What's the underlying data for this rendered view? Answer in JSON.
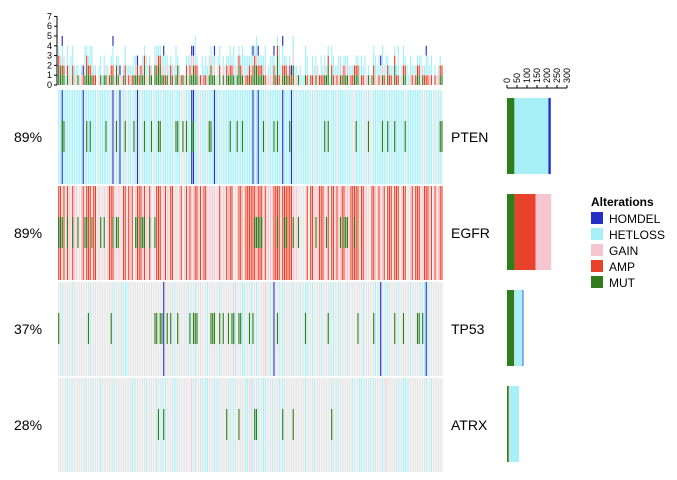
{
  "chart_data": {
    "type": "oncoprint",
    "n_samples": 220,
    "genes": [
      {
        "name": "PTEN",
        "percent": "89%",
        "counts": {
          "MUT": 37,
          "AMP": 0,
          "GAIN": 0,
          "HETLOSS": 170,
          "HOMDEL": 12
        }
      },
      {
        "name": "EGFR",
        "percent": "89%",
        "counts": {
          "MUT": 38,
          "AMP": 105,
          "GAIN": 78,
          "HETLOSS": 0,
          "HOMDEL": 0
        }
      },
      {
        "name": "TP53",
        "percent": "37%",
        "counts": {
          "MUT": 36,
          "AMP": 0,
          "GAIN": 2,
          "HETLOSS": 40,
          "HOMDEL": 4
        }
      },
      {
        "name": "ATRX",
        "percent": "28%",
        "counts": {
          "MUT": 9,
          "AMP": 0,
          "GAIN": 3,
          "HETLOSS": 48,
          "HOMDEL": 0
        }
      }
    ],
    "top_axis": {
      "ticks": [
        0,
        1,
        2,
        3,
        4,
        5,
        6,
        7
      ],
      "ylim": [
        0,
        7
      ]
    },
    "side_axis": {
      "ticks": [
        0,
        50,
        100,
        150,
        200,
        250,
        300
      ],
      "xlim": [
        0,
        320
      ]
    },
    "legend": {
      "title": "Alterations",
      "items": [
        {
          "label": "HOMDEL",
          "color": "#2630c7"
        },
        {
          "label": "HETLOSS",
          "color": "#a8f0f7"
        },
        {
          "label": "GAIN",
          "color": "#f5c6cf"
        },
        {
          "label": "AMP",
          "color": "#e8422a"
        },
        {
          "label": "MUT",
          "color": "#2f7d1f"
        }
      ]
    },
    "colors": {
      "HOMDEL": "#2630c7",
      "HETLOSS": "#a8f0f7",
      "GAIN": "#f5c6cf",
      "AMP": "#e8422a",
      "MUT": "#2f7d1f",
      "background": "#e4e4e4"
    }
  }
}
